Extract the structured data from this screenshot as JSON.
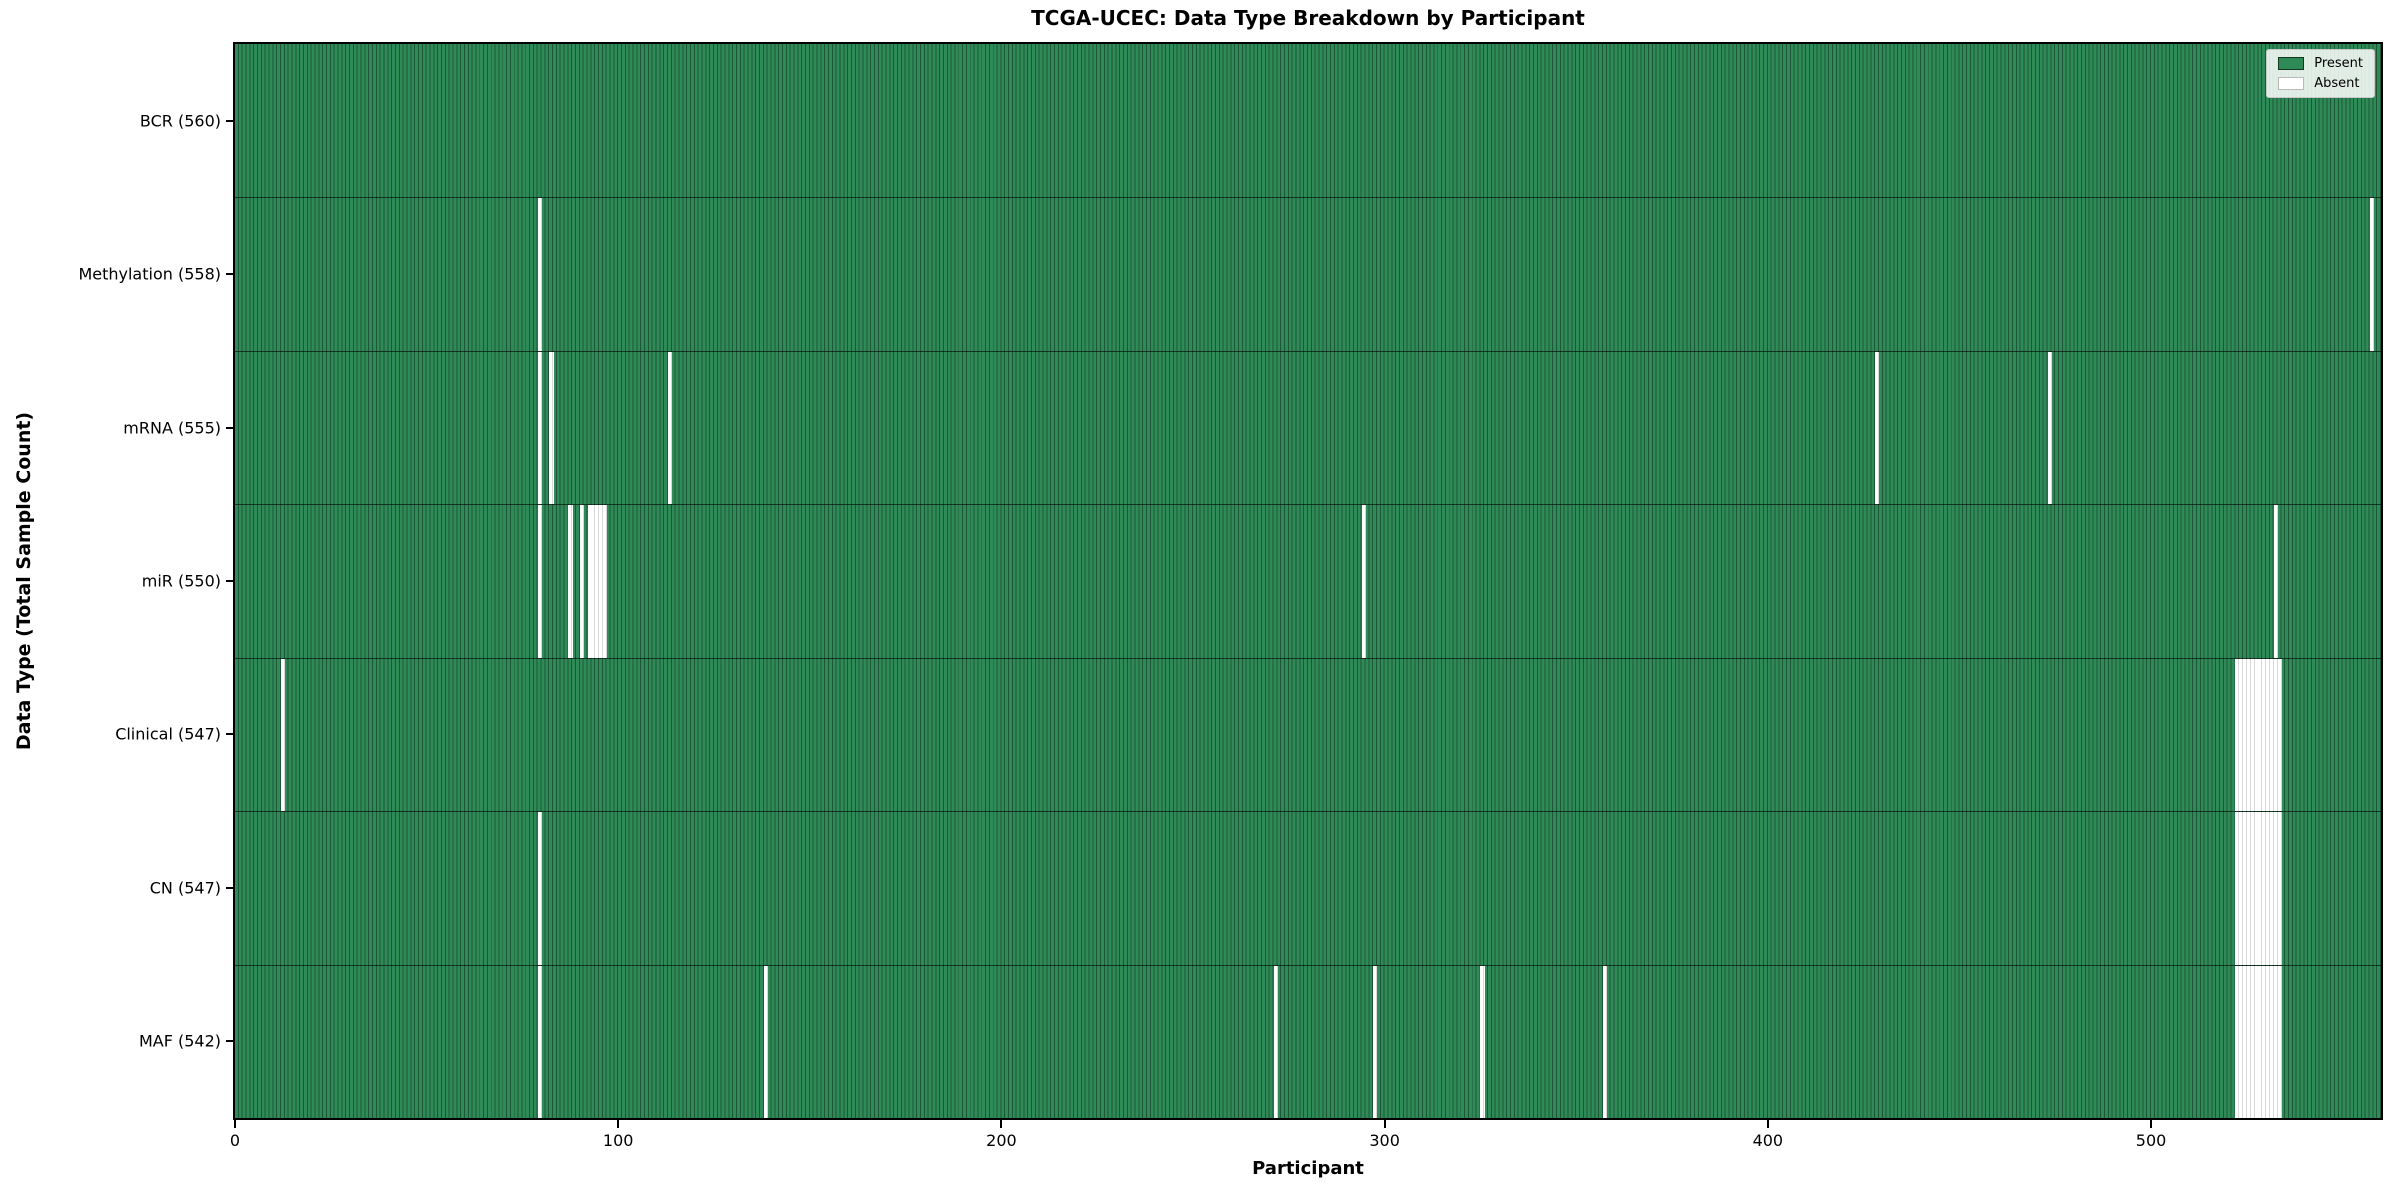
{
  "chart_data": {
    "type": "heatmap",
    "title": "TCGA-UCEC: Data Type Breakdown by Participant",
    "xlabel": "Participant",
    "ylabel": "Data Type (Total Sample Count)",
    "total_participants": 560,
    "x_range": [
      0,
      560
    ],
    "x_ticks": [
      0,
      100,
      200,
      300,
      400,
      500
    ],
    "x_tick_labels": [
      "0",
      "100",
      "200",
      "300",
      "400",
      "500"
    ],
    "grid": false,
    "legend_position": "upper right",
    "legend_entries": [
      {
        "label": "Present",
        "color": "#2e8b57"
      },
      {
        "label": "Absent",
        "color": "#ffffff"
      }
    ],
    "rows": [
      {
        "label": "BCR (560)",
        "data_type": "BCR",
        "present_count": 560,
        "absent_count": 0,
        "missing_participants": []
      },
      {
        "label": "Methylation (558)",
        "data_type": "Methylation",
        "present_count": 558,
        "absent_count": 2,
        "missing_participants": [
          79,
          557
        ]
      },
      {
        "label": "mRNA (555)",
        "data_type": "mRNA",
        "present_count": 555,
        "absent_count": 5,
        "missing_participants": [
          79,
          82,
          113,
          428,
          473
        ]
      },
      {
        "label": "miR (550)",
        "data_type": "miR",
        "present_count": 550,
        "absent_count": 10,
        "missing_participants": [
          79,
          87,
          90,
          92,
          93,
          94,
          95,
          96,
          294,
          532
        ]
      },
      {
        "label": "Clinical (547)",
        "data_type": "Clinical",
        "present_count": 547,
        "absent_count": 13,
        "missing_participants": [
          12,
          522,
          523,
          524,
          525,
          526,
          527,
          528,
          529,
          530,
          531,
          532,
          533
        ]
      },
      {
        "label": "CN (547)",
        "data_type": "CN",
        "present_count": 547,
        "absent_count": 13,
        "missing_participants": [
          79,
          522,
          523,
          524,
          525,
          526,
          527,
          528,
          529,
          530,
          531,
          532,
          533
        ]
      },
      {
        "label": "MAF (542)",
        "data_type": "MAF",
        "present_count": 542,
        "absent_count": 18,
        "missing_participants": [
          79,
          138,
          271,
          297,
          325,
          357,
          522,
          523,
          524,
          525,
          526,
          527,
          528,
          529,
          530,
          531,
          532,
          533
        ]
      }
    ]
  },
  "colors": {
    "present_fill": "#2e8b57",
    "present_edge": "#1d5737",
    "absent_fill": "#ffffff",
    "absent_edge": "#d9d9d9",
    "axis": "#000000"
  }
}
